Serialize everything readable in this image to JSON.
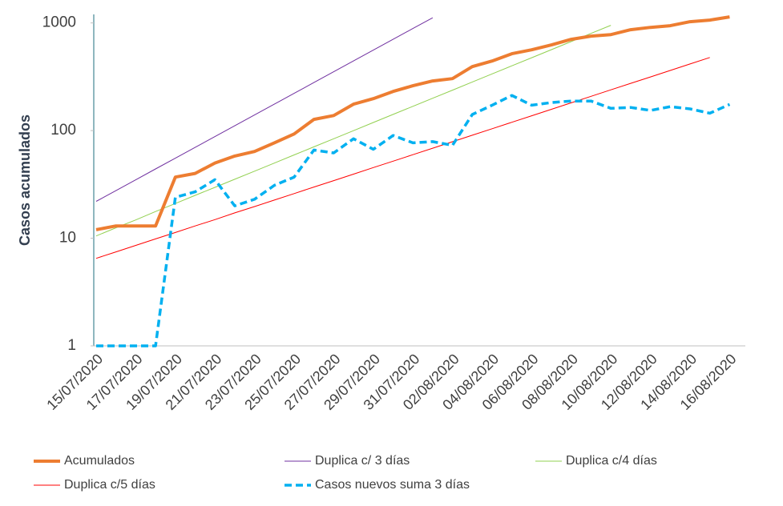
{
  "chart_data": {
    "type": "line",
    "y_label": "Casos acumulados",
    "log_scale_y": true,
    "grid": false,
    "legend": "bottom",
    "ylim": [
      1,
      1200
    ],
    "yticks": [
      1,
      10,
      100,
      1000
    ],
    "categories": [
      "15/07/2020",
      null,
      "17/07/2020",
      null,
      "19/07/2020",
      null,
      "21/07/2020",
      null,
      "23/07/2020",
      null,
      "25/07/2020",
      null,
      "27/07/2020",
      null,
      "29/07/2020",
      null,
      "31/07/2020",
      null,
      "02/08/2020",
      null,
      "04/08/2020",
      null,
      "06/08/2020",
      null,
      "08/08/2020",
      null,
      "10/08/2020",
      null,
      "12/08/2020",
      null,
      "14/08/2020",
      null,
      "16/08/2020"
    ],
    "series": [
      {
        "name": "Acumulados",
        "color": "#ED7D31",
        "line_width": 4,
        "line_style": "solid",
        "values": [
          12,
          13,
          13,
          13,
          37,
          40,
          50,
          58,
          64,
          77,
          93,
          127,
          138,
          176,
          198,
          231,
          261,
          289,
          304,
          393,
          443,
          518,
          563,
          625,
          704,
          754,
          780,
          865,
          910,
          942,
          1026,
          1062,
          1137
        ]
      },
      {
        "name": "Duplica c/ 3 días",
        "color": "#7030A0",
        "line_width": 1,
        "line_style": "solid",
        "values": [
          22,
          27.7,
          34.9,
          44,
          55.4,
          69.8,
          88,
          110.9,
          139.7,
          176,
          221.7,
          279.4,
          352,
          443.5,
          558.8,
          704,
          887,
          1117,
          null,
          null,
          null,
          null,
          null,
          null,
          null,
          null,
          null,
          null,
          null,
          null,
          null,
          null,
          null
        ]
      },
      {
        "name": "Duplica c/4 días",
        "color": "#92D050",
        "line_width": 1,
        "line_style": "solid",
        "values": [
          10.5,
          12.5,
          14.8,
          17.7,
          21,
          25,
          29.7,
          35.3,
          42,
          49.9,
          59.4,
          70.6,
          84,
          99.9,
          118.8,
          141.3,
          168,
          199.8,
          237.6,
          282.6,
          336,
          399.6,
          475.2,
          565.1,
          672,
          799.2,
          950.4,
          null,
          null,
          null,
          null,
          null,
          null
        ]
      },
      {
        "name": "Duplica c/5 días",
        "color": "#FF0000",
        "line_width": 1,
        "line_style": "solid",
        "values": [
          6.5,
          7.47,
          8.58,
          9.85,
          11.3,
          13,
          14.9,
          17.2,
          19.7,
          22.6,
          26,
          29.9,
          34.3,
          39.4,
          45.3,
          52,
          59.7,
          68.6,
          78.8,
          90.6,
          104,
          119.5,
          137.2,
          157.6,
          181.1,
          208,
          238.9,
          274.5,
          315.2,
          362.1,
          416,
          477.8,
          null
        ]
      },
      {
        "name": "Casos nuevos suma 3 días",
        "color": "#00B0F0",
        "line_width": 3.5,
        "line_style": "dashed",
        "values": [
          1,
          1,
          1,
          1,
          24,
          27,
          35,
          20,
          23,
          31,
          37,
          66,
          62,
          84,
          67,
          90,
          77,
          79,
          73,
          141,
          172,
          212,
          172,
          182,
          188,
          188,
          161,
          164,
          154,
          167,
          159,
          145,
          175
        ]
      }
    ]
  }
}
